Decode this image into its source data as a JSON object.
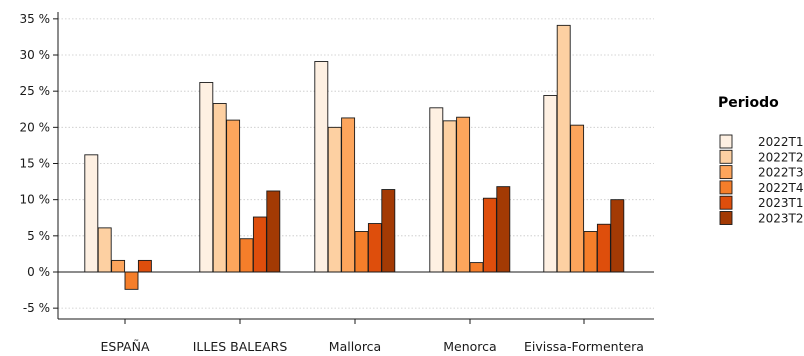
{
  "chart_data": {
    "type": "bar",
    "title": "",
    "xlabel": "",
    "ylabel": "",
    "ylim": [
      -6.5,
      36.5
    ],
    "y_ticks": [
      -5,
      0,
      5,
      10,
      15,
      20,
      25,
      30,
      35
    ],
    "y_tick_format": "{v} %",
    "grid": "horizontal dotted",
    "legend_title": "Periodo",
    "legend_position": "right",
    "categories": [
      "ESPAÑA",
      "ILLES BALEARS",
      "Mallorca",
      "Menorca",
      "Eivissa-Formentera"
    ],
    "series": [
      {
        "name": "2022T1",
        "color": "#fef0e2",
        "values": [
          16.2,
          26.2,
          29.1,
          22.7,
          24.4
        ]
      },
      {
        "name": "2022T2",
        "color": "#fdd0a2",
        "values": [
          6.1,
          23.3,
          20.0,
          20.9,
          34.1
        ]
      },
      {
        "name": "2022T3",
        "color": "#fda55c",
        "values": [
          1.6,
          21.0,
          21.3,
          21.4,
          20.3
        ]
      },
      {
        "name": "2022T4",
        "color": "#f57e2a",
        "values": [
          -2.4,
          4.6,
          5.6,
          1.3,
          5.6
        ]
      },
      {
        "name": "2023T1",
        "color": "#de4e0c",
        "values": [
          1.6,
          7.6,
          6.7,
          10.2,
          6.6
        ]
      },
      {
        "name": "2023T2",
        "color": "#a33a04",
        "values": [
          null,
          11.2,
          11.4,
          11.8,
          10.0
        ]
      }
    ]
  }
}
